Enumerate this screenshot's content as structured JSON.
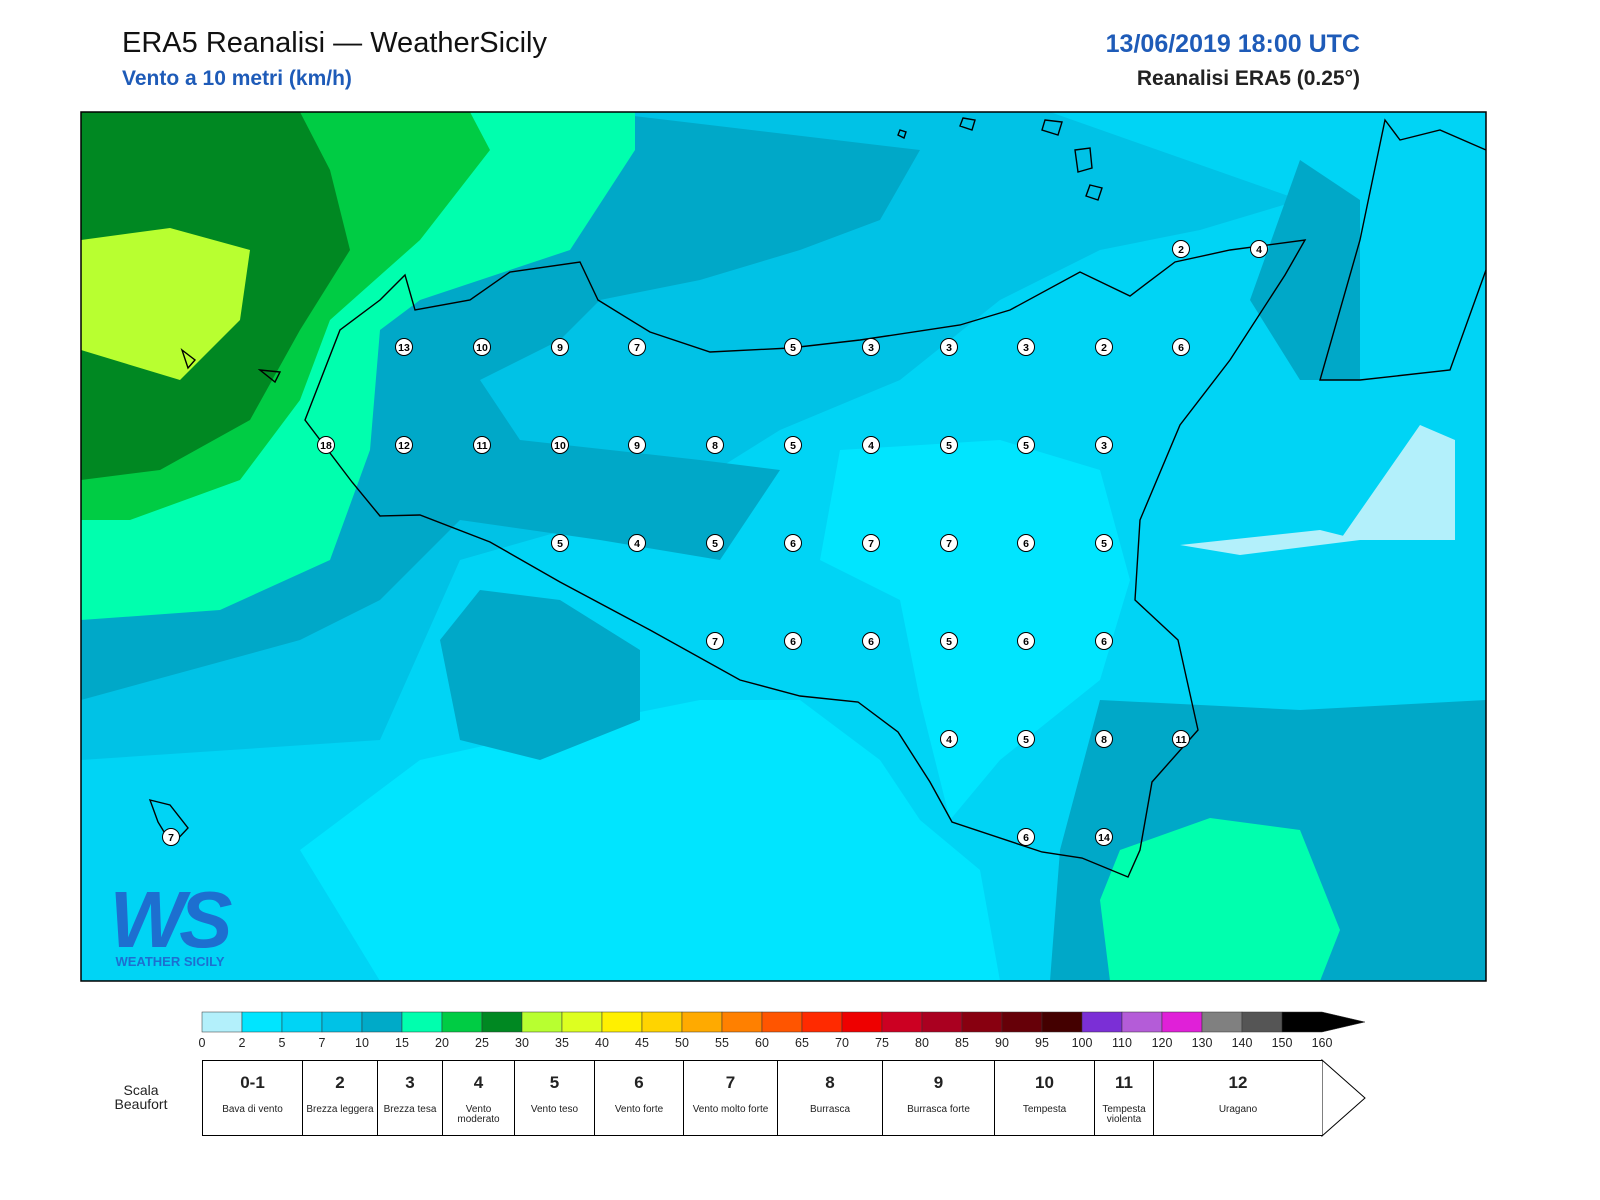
{
  "header": {
    "title": "ERA5 Reanalisi — WeatherSicily",
    "subtitle": "Vento a 10 metri (km/h)",
    "datetime": "13/06/2019 18:00 UTC",
    "model": "Reanalisi ERA5 (0.25°)"
  },
  "stations": [
    2,
    4,
    13,
    10,
    9,
    7,
    5,
    3,
    3,
    3,
    2,
    6,
    18,
    12,
    11,
    10,
    9,
    8,
    5,
    4,
    5,
    5,
    3,
    5,
    4,
    5,
    6,
    7,
    7,
    6,
    5,
    7,
    6,
    6,
    5,
    6,
    6,
    4,
    5,
    8,
    11,
    6,
    14,
    7
  ],
  "logo": {
    "mark": "WS",
    "name": "WEATHER SICILY"
  },
  "colorbar": {
    "ticks": [
      0,
      2,
      5,
      7,
      10,
      15,
      20,
      25,
      30,
      35,
      40,
      45,
      50,
      55,
      60,
      65,
      70,
      75,
      80,
      85,
      90,
      95,
      100,
      110,
      120,
      130,
      140,
      150,
      160
    ],
    "colors": [
      "#b3f0fb",
      "#00e5ff",
      "#00d4f5",
      "#00c2e6",
      "#00aac8",
      "#00ffae",
      "#00cc44",
      "#008822",
      "#b8ff30",
      "#ddff20",
      "#fff000",
      "#ffd400",
      "#ffaa00",
      "#ff8000",
      "#ff5500",
      "#ff2a00",
      "#ee0000",
      "#cc0022",
      "#aa0020",
      "#880010",
      "#660008",
      "#440000",
      "#7b2fd6",
      "#b45cd8",
      "#e020d8",
      "#808080",
      "#555555",
      "#000000",
      "#8b4a2b",
      "#c8834e"
    ]
  },
  "beaufort": {
    "label": "Scala Beaufort",
    "levels": [
      {
        "force": "0-1",
        "desc": "Bava di vento"
      },
      {
        "force": "2",
        "desc": "Brezza leggera"
      },
      {
        "force": "3",
        "desc": "Brezza tesa"
      },
      {
        "force": "4",
        "desc": "Vento moderato"
      },
      {
        "force": "5",
        "desc": "Vento teso"
      },
      {
        "force": "6",
        "desc": "Vento forte"
      },
      {
        "force": "7",
        "desc": "Vento molto forte"
      },
      {
        "force": "8",
        "desc": "Burrasca"
      },
      {
        "force": "9",
        "desc": "Burrasca forte"
      },
      {
        "force": "10",
        "desc": "Tempesta"
      },
      {
        "force": "11",
        "desc": "Tempesta violenta"
      },
      {
        "force": "12",
        "desc": "Uragano"
      }
    ]
  }
}
